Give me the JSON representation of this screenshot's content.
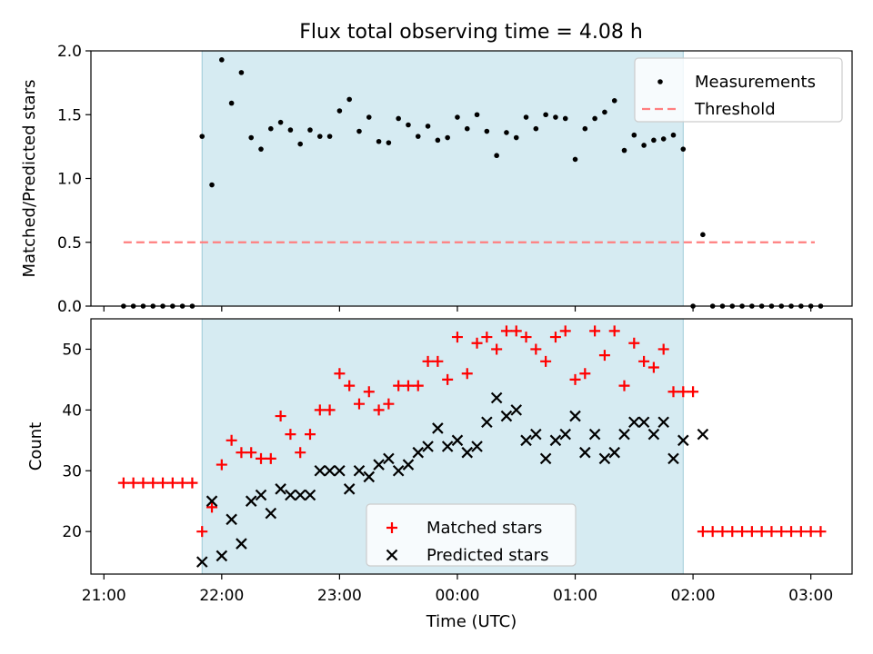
{
  "title": "Flux total observing time = 4.08 h",
  "colors": {
    "shade": "#add8e6",
    "threshold": "#ff7f7f",
    "matched": "#ff0000",
    "predicted": "#000000",
    "measurement": "#000000"
  },
  "chart_data": [
    {
      "type": "scatter",
      "name": "ratio-panel",
      "ylabel": "Matched/Predicted stars",
      "xlabel": "",
      "ylim": [
        0,
        2.0
      ],
      "yticks": [
        0.0,
        0.5,
        1.0,
        1.5,
        2.0
      ],
      "ytick_labels": [
        "0.0",
        "0.5",
        "1.0",
        "1.5",
        "2.0"
      ],
      "xlim": [
        "21:00 ‑0:06",
        "03:21"
      ],
      "shaded_span": [
        "21:50",
        "01:55"
      ],
      "legend": {
        "placement": "top-right",
        "entries": [
          "Measurements",
          "Threshold"
        ]
      },
      "threshold": {
        "value": 0.5,
        "x_start": "21:10",
        "x_end": "03:02"
      },
      "series": [
        {
          "name": "Measurements",
          "marker": "dot",
          "x": [
            "21:10",
            "21:15",
            "21:20",
            "21:25",
            "21:30",
            "21:35",
            "21:40",
            "21:45",
            "21:50",
            "21:55",
            "22:00",
            "22:05",
            "22:10",
            "22:15",
            "22:20",
            "22:25",
            "22:30",
            "22:35",
            "22:40",
            "22:45",
            "22:50",
            "22:55",
            "23:00",
            "23:05",
            "23:10",
            "23:15",
            "23:20",
            "23:25",
            "23:30",
            "23:35",
            "23:40",
            "23:45",
            "23:50",
            "23:55",
            "00:00",
            "00:05",
            "00:10",
            "00:15",
            "00:20",
            "00:25",
            "00:30",
            "00:35",
            "00:40",
            "00:45",
            "00:50",
            "00:55",
            "01:00",
            "01:05",
            "01:10",
            "01:15",
            "01:20",
            "01:25",
            "01:30",
            "01:35",
            "01:40",
            "01:45",
            "01:50",
            "01:55",
            "02:00",
            "02:05",
            "02:10",
            "02:15",
            "02:20",
            "02:25",
            "02:30",
            "02:35",
            "02:40",
            "02:45",
            "02:50",
            "02:55",
            "03:00",
            "03:05"
          ],
          "y": [
            0,
            0,
            0,
            0,
            0,
            0,
            0,
            0,
            1.33,
            0.95,
            1.93,
            1.59,
            1.83,
            1.32,
            1.23,
            1.39,
            1.44,
            1.38,
            1.27,
            1.38,
            1.33,
            1.33,
            1.53,
            1.62,
            1.37,
            1.48,
            1.29,
            1.28,
            1.47,
            1.42,
            1.33,
            1.41,
            1.3,
            1.32,
            1.48,
            1.39,
            1.5,
            1.37,
            1.18,
            1.36,
            1.32,
            1.48,
            1.39,
            1.5,
            1.48,
            1.47,
            1.15,
            1.39,
            1.47,
            1.52,
            1.61,
            1.22,
            1.34,
            1.26,
            1.3,
            1.31,
            1.34,
            1.23,
            0,
            0.56,
            0,
            0,
            0,
            0,
            0,
            0,
            0,
            0,
            0,
            0,
            0,
            0
          ]
        }
      ]
    },
    {
      "type": "scatter",
      "name": "count-panel",
      "ylabel": "Count",
      "xlabel": "Time (UTC)",
      "ylim": [
        13,
        55
      ],
      "yticks": [
        20,
        30,
        40,
        50
      ],
      "ytick_labels": [
        "20",
        "30",
        "40",
        "50"
      ],
      "xticks": [
        "21:00",
        "22:00",
        "23:00",
        "00:00",
        "01:00",
        "02:00",
        "03:00"
      ],
      "xtick_labels": [
        "21:00",
        "22:00",
        "23:00",
        "00:00",
        "01:00",
        "02:00",
        "03:00"
      ],
      "shaded_span": [
        "21:50",
        "01:55"
      ],
      "legend": {
        "placement": "bottom-center",
        "entries": [
          "Matched stars",
          "Predicted stars"
        ]
      },
      "series": [
        {
          "name": "Matched stars",
          "marker": "plus",
          "x": [
            "21:10",
            "21:15",
            "21:20",
            "21:25",
            "21:30",
            "21:35",
            "21:40",
            "21:45",
            "21:50",
            "21:55",
            "22:00",
            "22:05",
            "22:10",
            "22:15",
            "22:20",
            "22:25",
            "22:30",
            "22:35",
            "22:40",
            "22:45",
            "22:50",
            "22:55",
            "23:00",
            "23:05",
            "23:10",
            "23:15",
            "23:20",
            "23:25",
            "23:30",
            "23:35",
            "23:40",
            "23:45",
            "23:50",
            "23:55",
            "00:00",
            "00:05",
            "00:10",
            "00:15",
            "00:20",
            "00:25",
            "00:30",
            "00:35",
            "00:40",
            "00:45",
            "00:50",
            "00:55",
            "01:00",
            "01:05",
            "01:10",
            "01:15",
            "01:20",
            "01:25",
            "01:30",
            "01:35",
            "01:40",
            "01:45",
            "01:50",
            "01:55",
            "02:00",
            "02:05",
            "02:10",
            "02:15",
            "02:20",
            "02:25",
            "02:30",
            "02:35",
            "02:40",
            "02:45",
            "02:50",
            "02:55",
            "03:00",
            "03:05"
          ],
          "y": [
            28,
            28,
            28,
            28,
            28,
            28,
            28,
            28,
            20,
            24,
            31,
            35,
            33,
            33,
            32,
            32,
            39,
            36,
            33,
            36,
            40,
            40,
            46,
            44,
            41,
            43,
            40,
            41,
            44,
            44,
            44,
            48,
            48,
            45,
            52,
            46,
            51,
            52,
            50,
            53,
            53,
            52,
            50,
            48,
            52,
            53,
            45,
            46,
            53,
            49,
            53,
            44,
            51,
            48,
            47,
            50,
            43,
            43,
            43,
            20,
            20,
            20,
            20,
            20,
            20,
            20,
            20,
            20,
            20,
            20,
            20,
            20
          ]
        },
        {
          "name": "Predicted stars",
          "marker": "x",
          "x": [
            "21:50",
            "21:55",
            "22:00",
            "22:05",
            "22:10",
            "22:15",
            "22:20",
            "22:25",
            "22:30",
            "22:35",
            "22:40",
            "22:45",
            "22:50",
            "22:55",
            "23:00",
            "23:05",
            "23:10",
            "23:15",
            "23:20",
            "23:25",
            "23:30",
            "23:35",
            "23:40",
            "23:45",
            "23:50",
            "23:55",
            "00:00",
            "00:05",
            "00:10",
            "00:15",
            "00:20",
            "00:25",
            "00:30",
            "00:35",
            "00:40",
            "00:45",
            "00:50",
            "00:55",
            "01:00",
            "01:05",
            "01:10",
            "01:15",
            "01:20",
            "01:25",
            "01:30",
            "01:35",
            "01:40",
            "01:45",
            "01:50",
            "01:55",
            "02:05"
          ],
          "y": [
            15,
            25,
            16,
            22,
            18,
            25,
            26,
            23,
            27,
            26,
            26,
            26,
            30,
            30,
            30,
            27,
            30,
            29,
            31,
            32,
            30,
            31,
            33,
            34,
            37,
            34,
            35,
            33,
            34,
            38,
            42,
            39,
            40,
            35,
            36,
            32,
            35,
            36,
            39,
            33,
            36,
            32,
            33,
            36,
            38,
            38,
            36,
            38,
            32,
            35,
            36
          ]
        }
      ]
    }
  ]
}
